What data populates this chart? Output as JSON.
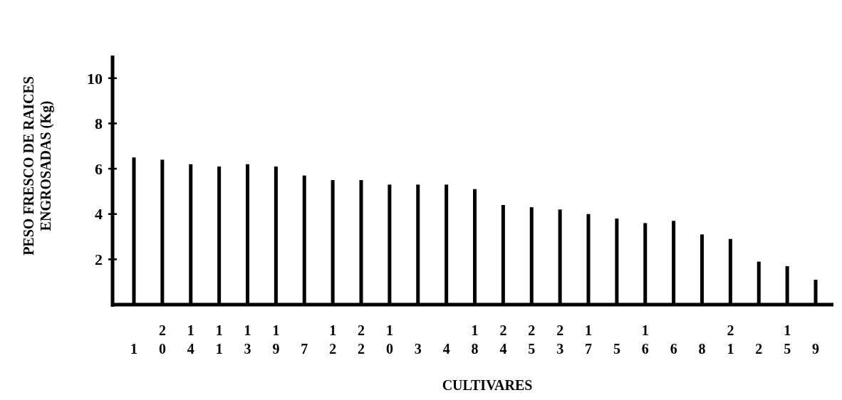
{
  "chart_data": {
    "type": "bar",
    "xlabel": "CULTIVARES",
    "ylabel": "PESO FRESCO DE RAICES\nENGROSADAS (Kg)",
    "categories": [
      "1",
      "20",
      "14",
      "11",
      "13",
      "19",
      "7",
      "12",
      "22",
      "10",
      "3",
      "4",
      "18",
      "24",
      "25",
      "23",
      "17",
      "5",
      "16",
      "6",
      "8",
      "21",
      "2",
      "15",
      "9"
    ],
    "values": [
      6.5,
      6.4,
      6.2,
      6.1,
      6.2,
      6.1,
      5.7,
      5.5,
      5.5,
      5.3,
      5.3,
      5.3,
      5.1,
      4.4,
      4.3,
      4.2,
      4.0,
      3.8,
      3.6,
      3.7,
      3.1,
      2.9,
      1.9,
      1.7,
      1.1
    ],
    "color": "#000000",
    "ylim": [
      0,
      11
    ],
    "yticks": [
      2,
      4,
      6,
      8,
      10
    ],
    "grid": false
  }
}
